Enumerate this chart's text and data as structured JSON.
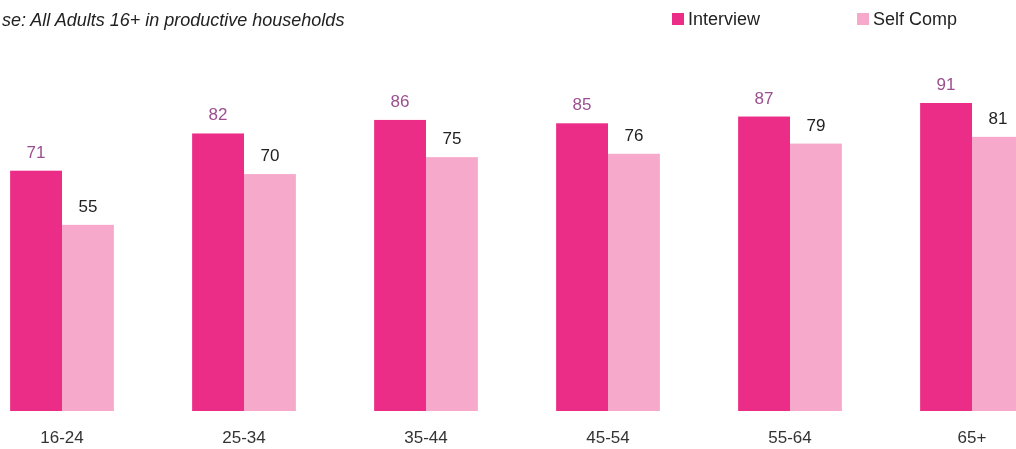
{
  "chart_data": {
    "type": "bar",
    "title": "se: All Adults 16+ in productive households",
    "categories": [
      "16-24",
      "25-34",
      "35-44",
      "45-54",
      "55-64",
      "65+"
    ],
    "series": [
      {
        "name": "Interview",
        "color": "#ec2d87",
        "values": [
          71,
          82,
          86,
          85,
          87,
          91
        ]
      },
      {
        "name": "Self Comp",
        "color": "#f7a9cc",
        "values": [
          55,
          70,
          75,
          76,
          79,
          81
        ]
      }
    ],
    "data_labels": true,
    "legend": "top right",
    "grid": false
  }
}
